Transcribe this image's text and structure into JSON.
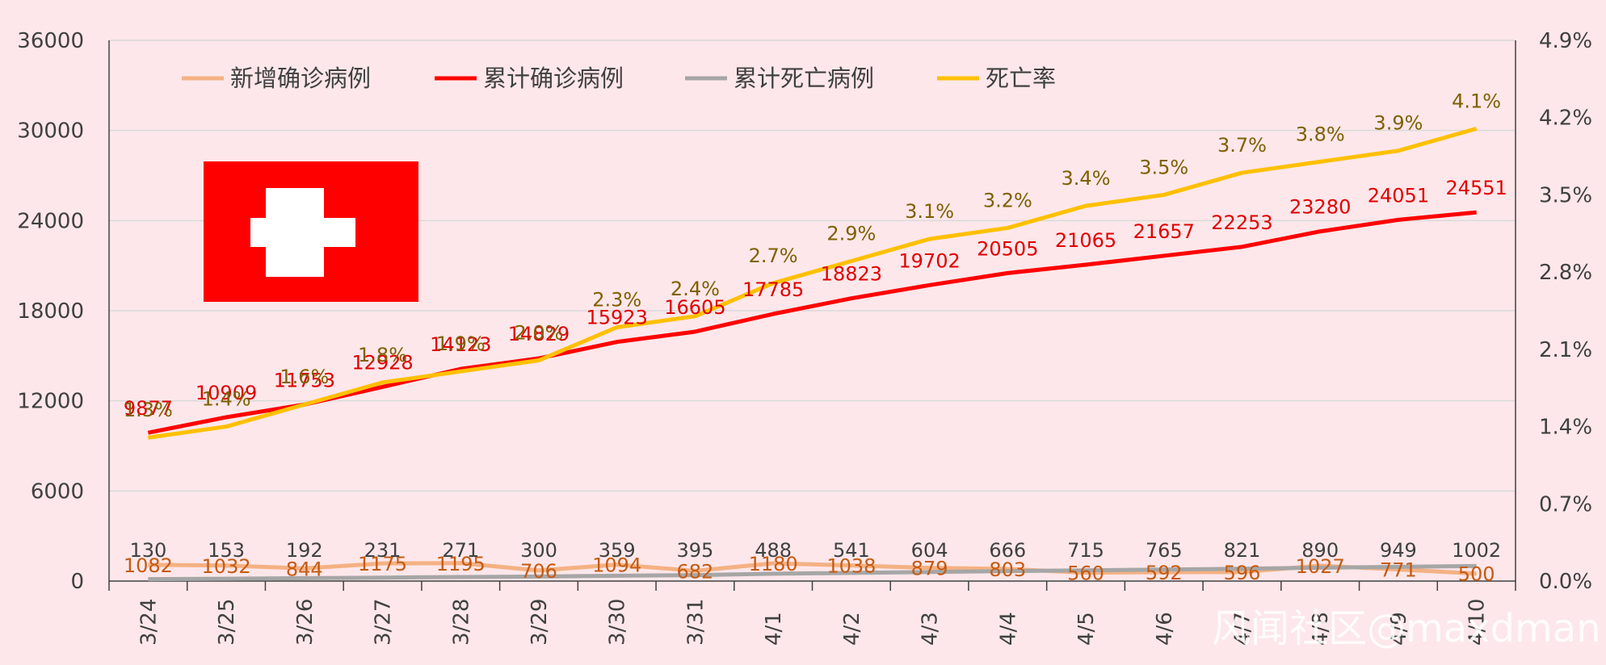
{
  "chart_data": {
    "type": "line",
    "categories": [
      "3/24",
      "3/25",
      "3/26",
      "3/27",
      "3/28",
      "3/29",
      "3/30",
      "3/31",
      "4/1",
      "4/2",
      "4/3",
      "4/4",
      "4/5",
      "4/6",
      "4/7",
      "4/8",
      "4/9",
      "4/10"
    ],
    "y_left": {
      "ylim": [
        0,
        36000
      ],
      "ticks": [
        "0",
        "6000",
        "12000",
        "18000",
        "24000",
        "30000",
        "36000"
      ]
    },
    "y_right": {
      "ylim": [
        0,
        4.9
      ],
      "ticks": [
        "0.0%",
        "0.7%",
        "1.4%",
        "2.1%",
        "2.8%",
        "3.5%",
        "4.2%",
        "4.9%"
      ]
    },
    "grid": true,
    "legend_position": "top",
    "series": [
      {
        "name": "新增确诊病例",
        "axis": "left",
        "color": "#f4b183",
        "label_color": "#c55a11",
        "values": [
          1082,
          1032,
          844,
          1175,
          1195,
          706,
          1094,
          682,
          1180,
          1038,
          879,
          803,
          560,
          592,
          596,
          1027,
          771,
          500
        ]
      },
      {
        "name": "累计确诊病例",
        "axis": "left",
        "color": "#ff0000",
        "label_color": "#e00000",
        "values": [
          9877,
          10909,
          11753,
          12928,
          14123,
          14829,
          15923,
          16605,
          17785,
          18823,
          19702,
          20505,
          21065,
          21657,
          22253,
          23280,
          24051,
          24551
        ]
      },
      {
        "name": "累计死亡病例",
        "axis": "left",
        "color": "#a6a6a6",
        "label_color": "#404040",
        "values": [
          130,
          153,
          192,
          231,
          271,
          300,
          359,
          395,
          488,
          541,
          604,
          666,
          715,
          765,
          821,
          890,
          949,
          1002
        ]
      },
      {
        "name": "死亡率",
        "axis": "right",
        "color": "#ffc000",
        "label_color": "#7f6000",
        "values": [
          1.3,
          1.4,
          1.6,
          1.8,
          1.9,
          2.0,
          2.3,
          2.4,
          2.7,
          2.9,
          3.1,
          3.2,
          3.4,
          3.5,
          3.7,
          3.8,
          3.9,
          4.1
        ],
        "labels": [
          "1.3%",
          "1.4%",
          "1.6%",
          "1.8%",
          "1.9%",
          "2.0%",
          "2.3%",
          "2.4%",
          "2.7%",
          "2.9%",
          "3.1%",
          "3.2%",
          "3.4%",
          "3.5%",
          "3.7%",
          "3.8%",
          "3.9%",
          "4.1%"
        ]
      }
    ]
  },
  "flag": {
    "name": "swiss-flag",
    "background": "#ff0000",
    "cross": "#ffffff"
  },
  "watermark": "风闻社区@maxdman"
}
